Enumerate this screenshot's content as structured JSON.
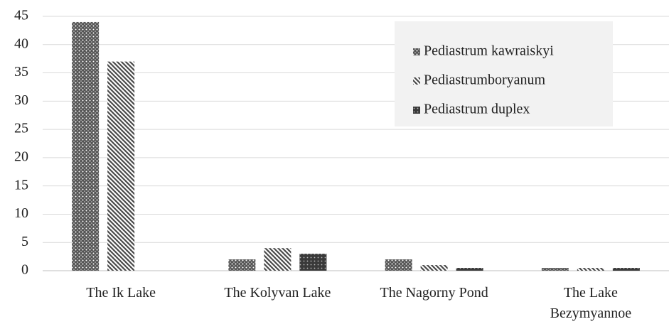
{
  "chart_data": {
    "type": "bar",
    "categories": [
      "The Ik Lake",
      "The Kolyvan Lake",
      "The Nagorny Pond",
      "The Lake\nBezymyannoe"
    ],
    "series": [
      {
        "name": "Pediastrum kawraiskyi",
        "color": "#555555",
        "values": [
          44,
          2,
          2,
          0.5
        ]
      },
      {
        "name": "Pediastrumboryanum",
        "color": "#4a4a4a",
        "values": [
          37,
          4,
          1,
          0.5
        ]
      },
      {
        "name": "Pediastrum duplex",
        "color": "#3a3a3a",
        "values": [
          0,
          3,
          0.5,
          0.5
        ]
      }
    ],
    "ylim": [
      0,
      45
    ],
    "yticks": [
      0,
      5,
      10,
      15,
      20,
      25,
      30,
      35,
      40,
      45
    ],
    "grid": true,
    "legend": "upper right"
  }
}
